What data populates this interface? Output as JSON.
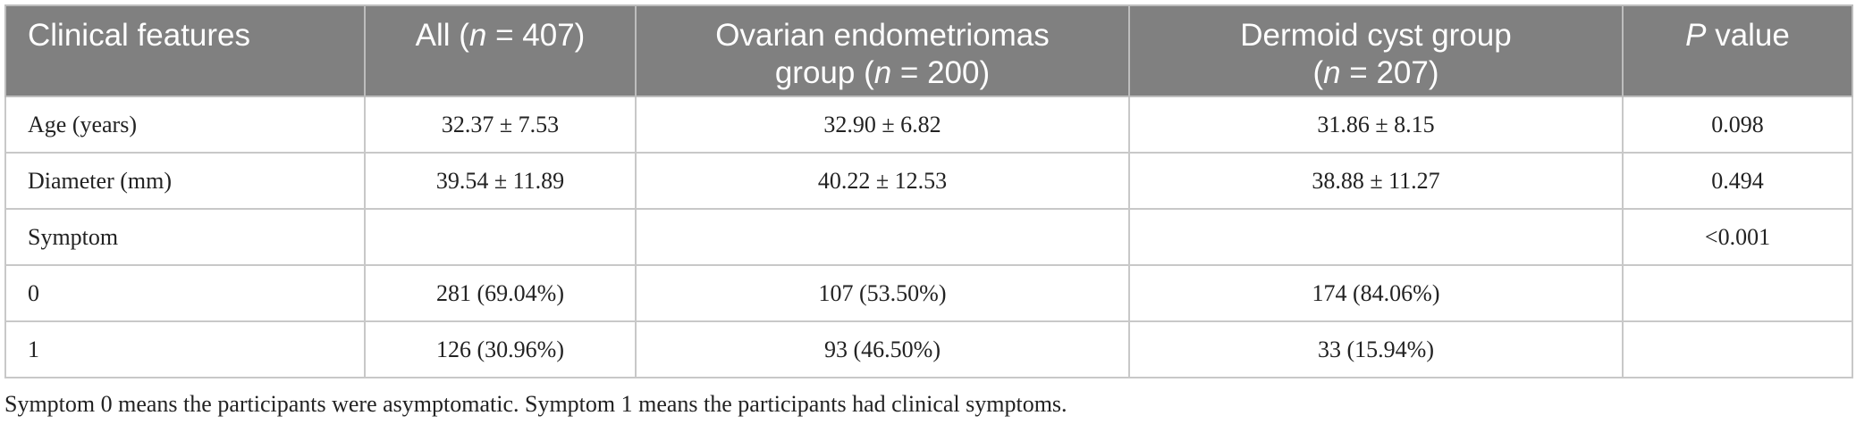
{
  "table": {
    "headers": [
      {
        "text": "Clinical features"
      },
      {
        "pre": "All (",
        "ital": "n",
        "post": " = 407)"
      },
      {
        "line1": "Ovarian endometriomas",
        "pre": "group (",
        "ital": "n",
        "post": " = 200)"
      },
      {
        "line1": "Dermoid cyst group",
        "pre": "(",
        "ital": "n",
        "post": " = 207)"
      },
      {
        "ital": "P",
        "post": " value"
      }
    ],
    "rows": [
      [
        "Age (years)",
        "32.37 ± 7.53",
        "32.90 ± 6.82",
        "31.86 ± 8.15",
        "0.098"
      ],
      [
        "Diameter (mm)",
        "39.54 ± 11.89",
        "40.22 ± 12.53",
        "38.88 ± 11.27",
        "0.494"
      ],
      [
        "Symptom",
        "",
        "",
        "",
        "<0.001"
      ],
      [
        "0",
        "281 (69.04%)",
        "107 (53.50%)",
        "174 (84.06%)",
        ""
      ],
      [
        "1",
        "126 (30.96%)",
        "93 (46.50%)",
        "33 (15.94%)",
        ""
      ]
    ]
  },
  "footnote": "Symptom 0 means the participants were asymptomatic. Symptom 1 means the participants had clinical symptoms."
}
